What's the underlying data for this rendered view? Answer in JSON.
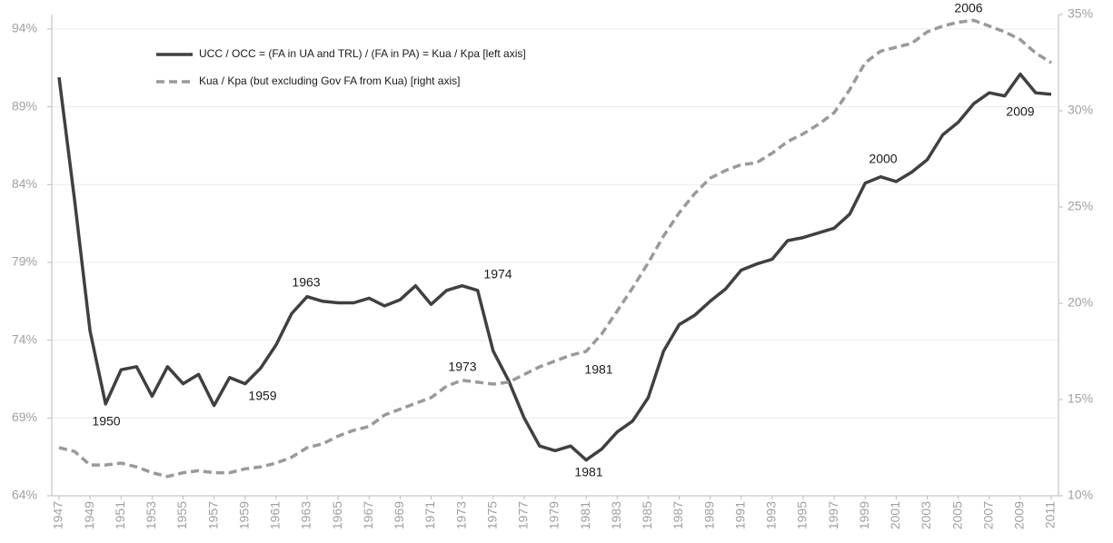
{
  "chart_data": {
    "type": "line",
    "x": [
      1947,
      1948,
      1949,
      1950,
      1951,
      1952,
      1953,
      1954,
      1955,
      1956,
      1957,
      1958,
      1959,
      1960,
      1961,
      1962,
      1963,
      1964,
      1965,
      1966,
      1967,
      1968,
      1969,
      1970,
      1971,
      1972,
      1973,
      1974,
      1975,
      1976,
      1977,
      1978,
      1979,
      1980,
      1981,
      1982,
      1983,
      1984,
      1985,
      1986,
      1987,
      1988,
      1989,
      1990,
      1991,
      1992,
      1993,
      1994,
      1995,
      1996,
      1997,
      1998,
      1999,
      2000,
      2001,
      2002,
      2003,
      2004,
      2005,
      2006,
      2007,
      2008,
      2009,
      2010,
      2011
    ],
    "xlim": [
      1947,
      2011
    ],
    "xticks": [
      1947,
      1949,
      1951,
      1953,
      1955,
      1957,
      1959,
      1961,
      1963,
      1965,
      1967,
      1969,
      1971,
      1973,
      1975,
      1977,
      1979,
      1981,
      1983,
      1985,
      1987,
      1989,
      1991,
      1993,
      1995,
      1997,
      1999,
      2001,
      2003,
      2005,
      2007,
      2009,
      2011
    ],
    "series": [
      {
        "name": "UCC / OCC = (FA in UA and TRL) / (FA in PA) = Kua / Kpa [left axis]",
        "color": "#404040",
        "line_style": "solid",
        "values": [
          90.9,
          83.0,
          74.6,
          69.9,
          72.1,
          72.3,
          70.4,
          72.3,
          71.2,
          71.8,
          69.8,
          71.6,
          71.2,
          72.2,
          73.7,
          75.7,
          76.8,
          76.5,
          76.4,
          76.4,
          76.7,
          76.2,
          76.6,
          77.5,
          76.3,
          77.2,
          77.5,
          77.2,
          73.3,
          71.4,
          69.0,
          67.2,
          66.9,
          67.2,
          66.3,
          67.0,
          68.1,
          68.8,
          70.3,
          73.3,
          75.0,
          75.6,
          76.5,
          77.3,
          78.5,
          78.9,
          79.2,
          80.4,
          80.6,
          80.9,
          81.2,
          82.1,
          84.1,
          84.5,
          84.2,
          84.8,
          85.6,
          87.2,
          88.0,
          89.2,
          89.9,
          89.7,
          91.1,
          89.9,
          89.8
        ]
      },
      {
        "name": "Kua / Kpa (but excluding Gov FA from Kua) [right axis]",
        "color": "#9a9a9a",
        "line_style": "dashed",
        "axis": "y2",
        "values": [
          12.5,
          12.3,
          11.6,
          11.6,
          11.7,
          11.5,
          11.2,
          11.0,
          11.2,
          11.3,
          11.2,
          11.2,
          11.4,
          11.5,
          11.7,
          12.0,
          12.5,
          12.7,
          13.1,
          13.4,
          13.6,
          14.2,
          14.5,
          14.8,
          15.1,
          15.7,
          16.0,
          15.9,
          15.8,
          15.9,
          16.3,
          16.7,
          17.0,
          17.3,
          17.5,
          18.4,
          19.6,
          20.8,
          22.1,
          23.5,
          24.7,
          25.7,
          26.5,
          26.9,
          27.2,
          27.3,
          27.8,
          28.4,
          28.8,
          29.3,
          29.9,
          31.1,
          32.5,
          33.1,
          33.3,
          33.5,
          34.1,
          34.4,
          34.6,
          34.7,
          34.4,
          34.1,
          33.7,
          33.0,
          32.5
        ]
      }
    ],
    "ylim": [
      64,
      94.93
    ],
    "yticks": [
      {
        "value": 64,
        "label": "64%"
      },
      {
        "value": 69,
        "label": "69%"
      },
      {
        "value": 74,
        "label": "74%"
      },
      {
        "value": 79,
        "label": "79%"
      },
      {
        "value": 84,
        "label": "84%"
      },
      {
        "value": 89,
        "label": "89%"
      },
      {
        "value": 94,
        "label": "94%"
      }
    ],
    "y2lim": [
      10,
      35
    ],
    "y2ticks": [
      {
        "value": 10,
        "label": "10%"
      },
      {
        "value": 15,
        "label": "15%"
      },
      {
        "value": 20,
        "label": "20%"
      },
      {
        "value": 25,
        "label": "25%"
      },
      {
        "value": 30,
        "label": "30%"
      },
      {
        "value": 35,
        "label": "35%"
      }
    ],
    "grid": true,
    "legend": "upper left",
    "annotations": [
      "1950",
      "1959",
      "1963",
      "1974",
      "1973",
      "1981",
      "1981",
      "2000",
      "2006",
      "2009"
    ]
  }
}
